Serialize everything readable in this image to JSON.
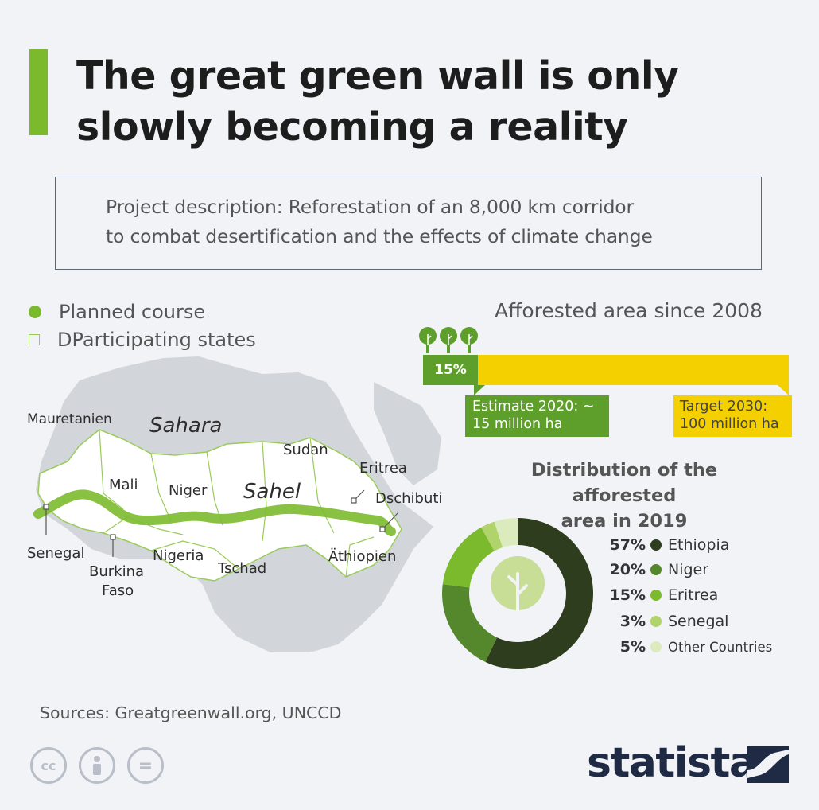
{
  "header": {
    "title_line1": "The great green wall is only",
    "title_line2": "slowly becoming a reality",
    "accent_color": "#7cba2d"
  },
  "description": {
    "line1": "Project description: Reforestation of an 8,000 km corridor",
    "line2": "to combat desertification and the effects of climate change"
  },
  "map": {
    "legend": {
      "planned_course": "Planned course",
      "participating_states": "DParticipating states"
    },
    "regions": {
      "sahara": "Sahara",
      "sahel": "Sahel"
    },
    "countries": [
      "Mauretanien",
      "Mali",
      "Niger",
      "Sudan",
      "Eritrea",
      "Dschibuti",
      "Senegal",
      "Burkina",
      "Faso",
      "Nigeria",
      "Tschad",
      "Äthiopien"
    ]
  },
  "afforested": {
    "title": "Afforested area since 2008",
    "bar_label": "15%",
    "estimate_line1": "Estimate 2020: ~",
    "estimate_line2": "15 million ha",
    "target_line1": "Target 2030:",
    "target_line2": "100 million ha"
  },
  "distribution": {
    "title_line1": "Distribution of the afforested",
    "title_line2": "area in 2019",
    "items": [
      {
        "pct": "57%",
        "label": "Ethiopia",
        "color": "#2e3d1d"
      },
      {
        "pct": "20%",
        "label": "Niger",
        "color": "#55882c"
      },
      {
        "pct": "15%",
        "label": "Eritrea",
        "color": "#7cba2d"
      },
      {
        "pct": "3%",
        "label": "Senegal",
        "color": "#b0d36c"
      },
      {
        "pct": "5%",
        "label": "Other Countries",
        "color": "#dcebbe"
      }
    ]
  },
  "chart_data": [
    {
      "type": "bar",
      "title": "Afforested area since 2008",
      "categories": [
        "Estimate 2020",
        "Target 2030"
      ],
      "values": [
        15,
        100
      ],
      "unit": "million ha",
      "share_label": "15%"
    },
    {
      "type": "pie",
      "title": "Distribution of the afforested area in 2019",
      "categories": [
        "Ethiopia",
        "Niger",
        "Eritrea",
        "Senegal",
        "Other Countries"
      ],
      "values": [
        57,
        20,
        15,
        3,
        5
      ],
      "colors": [
        "#2e3d1d",
        "#55882c",
        "#7cba2d",
        "#b0d36c",
        "#dcebbe"
      ]
    }
  ],
  "footer": {
    "sources": "Sources: Greatgreenwall.org, UNCCD",
    "license_icons": [
      "creative-commons-icon",
      "attribution-icon",
      "no-derivatives-icon"
    ],
    "cc_text": "cc",
    "eq_text": "=",
    "brand": "statista"
  }
}
